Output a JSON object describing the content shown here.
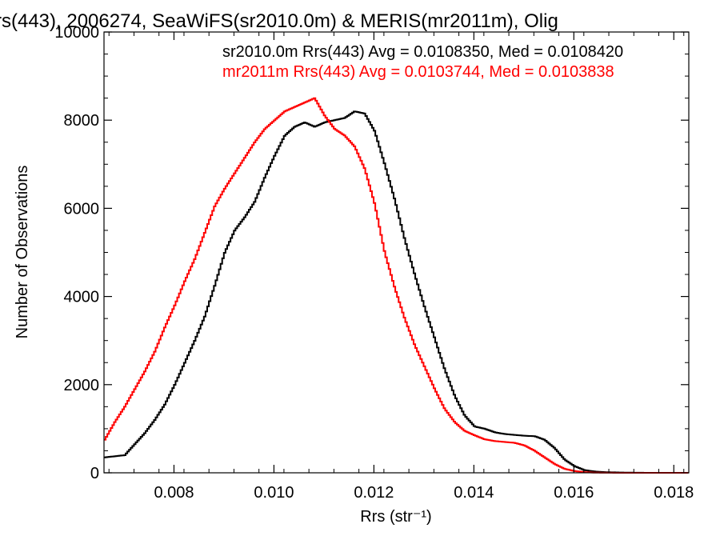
{
  "chart_data": {
    "type": "line",
    "title": "rs(443), 2006274, SeaWiFS(sr2010.0m) & MERIS(mr2011m), Olig",
    "xlabel": "Rrs (str⁻¹)",
    "ylabel": "Number of Observations",
    "xlim": [
      0.0066,
      0.0183
    ],
    "ylim": [
      0,
      10000
    ],
    "x_ticks": [
      0.008,
      0.01,
      0.012,
      0.014,
      0.016,
      0.018
    ],
    "x_tick_labels": [
      "0.008",
      "0.010",
      "0.012",
      "0.014",
      "0.016",
      "0.018"
    ],
    "y_ticks": [
      0,
      2000,
      4000,
      6000,
      8000,
      10000
    ],
    "y_tick_labels": [
      "0",
      "2000",
      "4000",
      "6000",
      "8000",
      "10000"
    ],
    "grid": false,
    "legend_placement": "top-right",
    "annotations": [
      {
        "text": "sr2010.0m Rrs(443) Avg = 0.0108350, Med = 0.0108420",
        "color": "#000000"
      },
      {
        "text": "mr2011m Rrs(443) Avg = 0.0103744, Med = 0.0103838",
        "color": "#ff0000"
      }
    ],
    "series": [
      {
        "color": "#000000",
        "x": [
          0.0066,
          0.007,
          0.0072,
          0.0074,
          0.0076,
          0.0078,
          0.008,
          0.0082,
          0.0084,
          0.0086,
          0.0088,
          0.009,
          0.0092,
          0.0094,
          0.0096,
          0.0098,
          0.01,
          0.0102,
          0.0104,
          0.0106,
          0.0108,
          0.011,
          0.0112,
          0.0114,
          0.0116,
          0.0118,
          0.012,
          0.0122,
          0.0124,
          0.0126,
          0.0128,
          0.013,
          0.0132,
          0.0134,
          0.0136,
          0.0138,
          0.014,
          0.0142,
          0.0144,
          0.0146,
          0.0148,
          0.015,
          0.0152,
          0.0154,
          0.0156,
          0.0158,
          0.016,
          0.0162,
          0.0164,
          0.0166,
          0.017,
          0.0175,
          0.018,
          0.0183
        ],
        "y": [
          350,
          400,
          650,
          900,
          1200,
          1550,
          2000,
          2500,
          3000,
          3550,
          4250,
          5000,
          5500,
          5800,
          6150,
          6700,
          7200,
          7650,
          7850,
          7950,
          7850,
          7950,
          8000,
          8050,
          8200,
          8150,
          7750,
          7000,
          6200,
          5300,
          4500,
          3750,
          3050,
          2350,
          1750,
          1300,
          1050,
          1000,
          920,
          880,
          860,
          840,
          830,
          750,
          560,
          300,
          150,
          60,
          30,
          15,
          5,
          0,
          0,
          0
        ]
      },
      {
        "color": "#ff0000",
        "x": [
          0.0066,
          0.0068,
          0.007,
          0.0072,
          0.0074,
          0.0076,
          0.0078,
          0.008,
          0.0082,
          0.0084,
          0.0086,
          0.0088,
          0.009,
          0.0092,
          0.0094,
          0.0096,
          0.0098,
          0.01,
          0.0102,
          0.0104,
          0.0106,
          0.0108,
          0.011,
          0.0112,
          0.0114,
          0.0116,
          0.0118,
          0.012,
          0.0122,
          0.0124,
          0.0126,
          0.0128,
          0.013,
          0.0132,
          0.0134,
          0.0136,
          0.0138,
          0.014,
          0.0142,
          0.0144,
          0.0146,
          0.0148,
          0.015,
          0.0152,
          0.0154,
          0.0156,
          0.0158,
          0.016,
          0.0162,
          0.0164,
          0.0166,
          0.017,
          0.0175,
          0.0183
        ],
        "y": [
          750,
          1150,
          1500,
          1900,
          2300,
          2750,
          3300,
          3800,
          4350,
          4850,
          5450,
          6050,
          6450,
          6800,
          7150,
          7500,
          7800,
          8000,
          8200,
          8300,
          8400,
          8500,
          8100,
          7800,
          7650,
          7400,
          6900,
          6100,
          5000,
          4200,
          3500,
          2900,
          2400,
          1900,
          1450,
          1150,
          950,
          850,
          760,
          720,
          700,
          680,
          620,
          500,
          350,
          200,
          90,
          40,
          15,
          5,
          2,
          0,
          0,
          0
        ]
      }
    ]
  }
}
